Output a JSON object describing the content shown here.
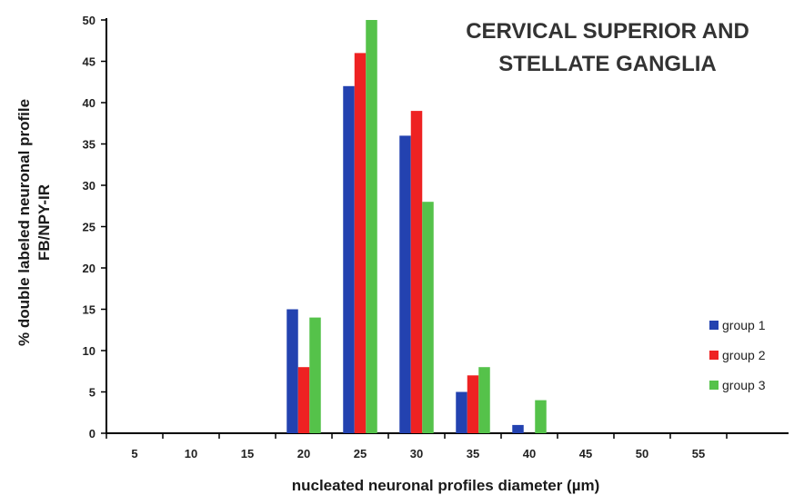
{
  "chart_data": {
    "type": "bar",
    "title_lines": [
      "CERVICAL SUPERIOR AND",
      "STELLATE GANGLIA"
    ],
    "xlabel": "nucleated neuronal profiles diameter (µm)",
    "ylabel_lines": [
      "% double labeled neuronal profile",
      "FB/NPY-IR"
    ],
    "categories": [
      "5",
      "10",
      "15",
      "20",
      "25",
      "30",
      "35",
      "40",
      "45",
      "50",
      "55"
    ],
    "yticks": [
      "0",
      "5",
      "10",
      "15",
      "20",
      "25",
      "30",
      "35",
      "40",
      "45",
      "50"
    ],
    "ylim": [
      0,
      50
    ],
    "grid": false,
    "legend_position": "right",
    "series": [
      {
        "name": "group 1",
        "color": "#2342b0",
        "values": [
          0,
          0,
          0,
          15,
          42,
          36,
          5,
          1,
          0,
          0,
          0
        ]
      },
      {
        "name": "group 2",
        "color": "#ee2222",
        "values": [
          0,
          0,
          0,
          8,
          46,
          39,
          7,
          0,
          0,
          0,
          0
        ]
      },
      {
        "name": "group 3",
        "color": "#55c24a",
        "values": [
          0,
          0,
          0,
          14,
          50,
          28,
          8,
          4,
          0,
          0,
          0
        ]
      }
    ]
  }
}
